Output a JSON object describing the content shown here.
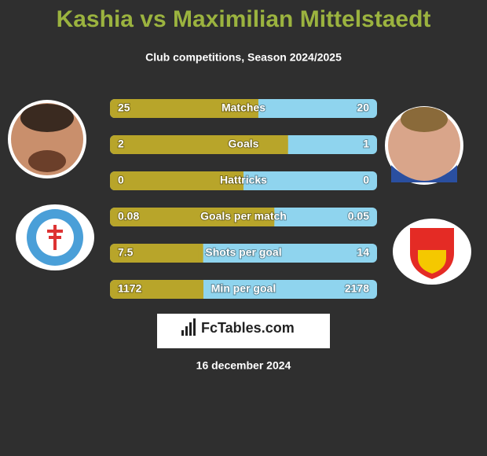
{
  "header": {
    "title": "Kashia vs Maximilian Mittelstaedt",
    "subtitle": "Club competitions, Season 2024/2025"
  },
  "comparison": {
    "left_color": "#b8a52a",
    "right_color": "#8fd4ee",
    "rows": [
      {
        "label": "Matches",
        "left": 25,
        "right": 20
      },
      {
        "label": "Goals",
        "left": 2,
        "right": 1
      },
      {
        "label": "Hattricks",
        "left": 0,
        "right": 0
      },
      {
        "label": "Goals per match",
        "left": 0.08,
        "right": 0.05
      },
      {
        "label": "Shots per goal",
        "left": 7.5,
        "right": 14
      },
      {
        "label": "Min per goal",
        "left": 1172,
        "right": 2178
      }
    ]
  },
  "footer": {
    "brand": "FcTables.com",
    "date": "16 december 2024"
  }
}
